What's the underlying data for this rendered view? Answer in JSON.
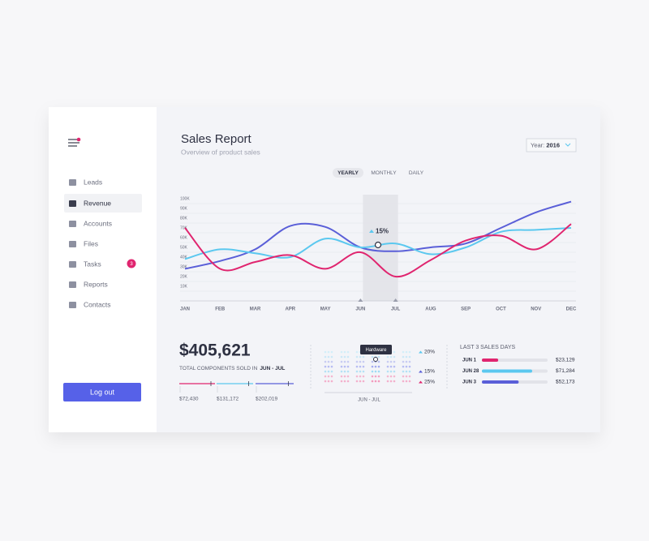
{
  "sidebar": {
    "nav": [
      {
        "label": "Leads"
      },
      {
        "label": "Revenue"
      },
      {
        "label": "Accounts"
      },
      {
        "label": "Files"
      },
      {
        "label": "Tasks"
      },
      {
        "label": "Reports"
      },
      {
        "label": "Contacts"
      }
    ],
    "tasks_badge": "3",
    "logout": "Log out"
  },
  "header": {
    "title": "Sales Report",
    "subtitle": "Overview of product sales",
    "year_label": "Year:",
    "year": "2016"
  },
  "tabs": [
    "YEARLY",
    "MONTHLY",
    "DAILY"
  ],
  "sales_chart": {
    "type": "line",
    "categories": [
      "JAN",
      "FEB",
      "MAR",
      "APR",
      "MAY",
      "JUN",
      "JUL",
      "AUG",
      "SEP",
      "OCT",
      "NOV",
      "DEC"
    ],
    "ylim": [
      0,
      100
    ],
    "yticks": [
      {
        "value": 10,
        "label": "10K"
      },
      {
        "value": 20,
        "label": "20K"
      },
      {
        "value": 30,
        "label": "30K"
      },
      {
        "value": 40,
        "label": "40K"
      },
      {
        "value": 50,
        "label": "50K"
      },
      {
        "value": 60,
        "label": "60K"
      },
      {
        "value": 70,
        "label": "70K"
      },
      {
        "value": 80,
        "label": "80K"
      },
      {
        "value": 90,
        "label": "90K"
      },
      {
        "value": 100,
        "label": "100K"
      }
    ],
    "grid": true,
    "series": [
      {
        "color": "#5a5fd8",
        "values": [
          28,
          36,
          48,
          72,
          71,
          50,
          46,
          50,
          54,
          70,
          86,
          97
        ]
      },
      {
        "color": "#5bc8ef",
        "values": [
          38,
          48,
          44,
          40,
          59,
          50,
          54,
          43,
          50,
          66,
          68,
          70
        ]
      },
      {
        "color": "#e0256f",
        "values": [
          70,
          28,
          35,
          42,
          28,
          45,
          20,
          37,
          57,
          62,
          48,
          74
        ]
      }
    ],
    "annotation": "15%"
  },
  "summary": {
    "total": "$405,621",
    "caption": "TOTAL COMPONENTS SOLD IN",
    "period": "JUN - JUL",
    "segments": [
      {
        "color": "#e0256f",
        "label": "$72,430"
      },
      {
        "color": "#5bc8ef",
        "label": "$131,172"
      },
      {
        "color": "#5a5fd8",
        "label": "$202,019"
      }
    ]
  },
  "breakdown": {
    "tooltip": "Hardware",
    "legend": [
      "20%",
      "15%",
      "25%"
    ],
    "period": "JUN - JUL"
  },
  "last_days": {
    "title": "LAST 3 SALES DAYS",
    "rows": [
      {
        "date": "JUN 1",
        "color": "#e0256f",
        "value": 23129,
        "value_label": "$23,129"
      },
      {
        "date": "JUN 28",
        "color": "#5bc8ef",
        "value": 71284,
        "value_label": "$71,284"
      },
      {
        "date": "JUN 3",
        "color": "#5a5fd8",
        "value": 52173,
        "value_label": "$52,173"
      }
    ]
  }
}
